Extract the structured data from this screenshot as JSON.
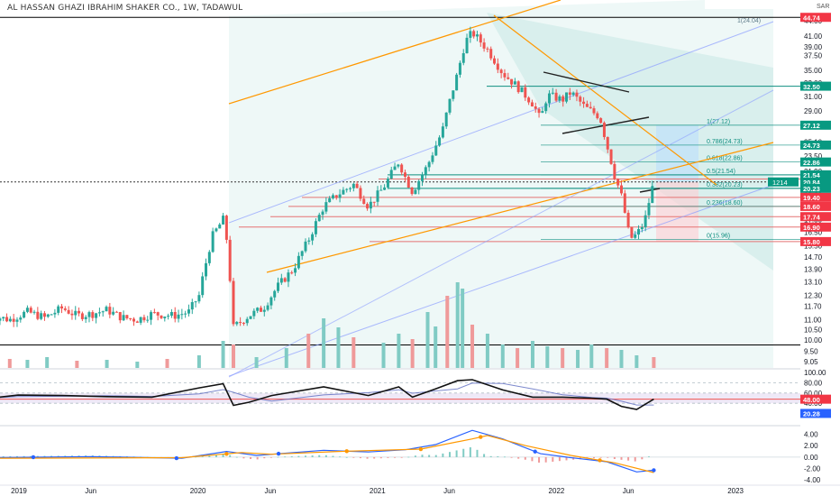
{
  "header": {
    "title": "AL HASSAN GHAZI IBRAHIM SHAKER CO., 1W, TADAWUL",
    "currency": "SAR"
  },
  "colors": {
    "up": "#26a69a",
    "down": "#ef5350",
    "fib": "#0f8f80",
    "orange": "#ff9800",
    "blue": "#2962ff",
    "black": "#000000",
    "tag_red": "#f23645",
    "tag_green": "#089981",
    "tag_blue": "#2962ff"
  },
  "chart_data": [
    {
      "type": "line",
      "panel": "price",
      "title": "AL HASSAN GHAZI IBRAHIM SHAKER CO., 1W, TADAWUL",
      "x_ticks": [
        "2019",
        "Jun",
        "2020",
        "Jun",
        "2021",
        "Jun",
        "2022",
        "Jun",
        "2023"
      ],
      "y_ticks": [
        9.05,
        9.5,
        10.0,
        10.5,
        11.0,
        11.7,
        12.3,
        13.1,
        13.9,
        14.7,
        15.5,
        16.5,
        17.5,
        18.5,
        19.6,
        20.6,
        21.9,
        23.5,
        25.1,
        27.0,
        29.0,
        31.0,
        33.0,
        35.0,
        37.5,
        39.0,
        41.0,
        44.0
      ],
      "ylim": [
        8.9,
        46.5
      ],
      "scale": "log",
      "series": [
        {
          "values": [
            [
              "2018-11-04",
              11.2
            ],
            [
              "2018-12-15",
              11.0
            ],
            [
              "2019-01-20",
              11.4
            ],
            [
              "2019-02-24",
              11.1
            ],
            [
              "2019-04-01",
              11.6
            ],
            [
              "2019-05-01",
              11.2
            ],
            [
              "2019-06-01",
              11.3
            ],
            [
              "2019-07-01",
              11.5
            ],
            [
              "2019-08-01",
              11.1
            ],
            [
              "2019-09-01",
              11.0
            ],
            [
              "2019-10-01",
              11.3
            ],
            [
              "2019-11-15",
              11.2
            ],
            [
              "2019-12-15",
              11.4
            ],
            [
              "2020-01-05",
              12.3
            ],
            [
              "2020-02-01",
              16.2
            ],
            [
              "2020-02-23",
              17.5
            ],
            [
              "2020-03-01",
              16.0
            ],
            [
              "2020-03-15",
              10.6
            ],
            [
              "2020-04-15",
              11.2
            ],
            [
              "2020-05-15",
              11.6
            ],
            [
              "2020-06-15",
              12.9
            ],
            [
              "2020-07-15",
              13.9
            ],
            [
              "2020-08-15",
              15.9
            ],
            [
              "2020-09-15",
              18.6
            ],
            [
              "2020-10-15",
              19.7
            ],
            [
              "2020-11-15",
              20.6
            ],
            [
              "2020-12-15",
              18.6
            ],
            [
              "2021-01-15",
              20.3
            ],
            [
              "2021-02-15",
              22.9
            ],
            [
              "2021-03-01",
              21.2
            ],
            [
              "2021-03-15",
              19.9
            ],
            [
              "2021-04-15",
              22.5
            ],
            [
              "2021-05-15",
              26.4
            ],
            [
              "2021-06-15",
              34.5
            ],
            [
              "2021-07-01",
              40.0
            ],
            [
              "2021-07-15",
              41.7
            ],
            [
              "2021-08-15",
              38.5
            ],
            [
              "2021-09-15",
              34.5
            ],
            [
              "2021-10-15",
              32.4
            ],
            [
              "2021-11-15",
              30.0
            ],
            [
              "2021-12-01",
              27.8
            ],
            [
              "2021-12-15",
              31.2
            ],
            [
              "2022-01-15",
              30.5
            ],
            [
              "2022-02-01",
              31.6
            ],
            [
              "2022-03-01",
              29.5
            ],
            [
              "2022-04-01",
              28.2
            ],
            [
              "2022-04-15",
              24.8
            ],
            [
              "2022-05-01",
              21.5
            ],
            [
              "2022-05-15",
              19.5
            ],
            [
              "2022-06-01",
              16.0
            ],
            [
              "2022-06-15",
              16.3
            ],
            [
              "2022-07-01",
              17.3
            ],
            [
              "2022-07-20",
              20.84
            ]
          ]
        }
      ],
      "volume": [
        [
          "2018-11-04",
          8
        ],
        [
          "2018-12-15",
          10
        ],
        [
          "2019-01-20",
          9
        ],
        [
          "2019-03-01",
          12
        ],
        [
          "2019-05-01",
          8
        ],
        [
          "2019-07-01",
          9
        ],
        [
          "2019-09-01",
          7
        ],
        [
          "2019-11-01",
          10
        ],
        [
          "2020-01-05",
          14
        ],
        [
          "2020-02-23",
          30
        ],
        [
          "2020-03-15",
          26
        ],
        [
          "2020-05-01",
          12
        ],
        [
          "2020-07-01",
          22
        ],
        [
          "2020-08-15",
          38
        ],
        [
          "2020-09-15",
          55
        ],
        [
          "2020-10-15",
          45
        ],
        [
          "2020-11-15",
          34
        ],
        [
          "2021-01-15",
          28
        ],
        [
          "2021-02-15",
          38
        ],
        [
          "2021-03-15",
          32
        ],
        [
          "2021-04-15",
          62
        ],
        [
          "2021-05-01",
          46
        ],
        [
          "2021-05-25",
          80
        ],
        [
          "2021-06-15",
          95
        ],
        [
          "2021-06-25",
          88
        ],
        [
          "2021-07-15",
          48
        ],
        [
          "2021-08-15",
          38
        ],
        [
          "2021-09-15",
          26
        ],
        [
          "2021-10-15",
          22
        ],
        [
          "2021-11-15",
          30
        ],
        [
          "2021-12-15",
          24
        ],
        [
          "2022-01-15",
          22
        ],
        [
          "2022-02-15",
          20
        ],
        [
          "2022-03-15",
          26
        ],
        [
          "2022-04-15",
          22
        ],
        [
          "2022-05-15",
          20
        ],
        [
          "2022-06-15",
          14
        ],
        [
          "2022-07-20",
          12
        ]
      ]
    },
    {
      "type": "line",
      "panel": "rsi",
      "ylim": [
        0,
        100
      ],
      "y_ticks": [
        "100.00",
        "80.00",
        "60.00",
        "40.00"
      ],
      "series": [
        {
          "values": [
            [
              "2018-11-04",
              50
            ],
            [
              "2019-01-01",
              56
            ],
            [
              "2019-04-01",
              55
            ],
            [
              "2019-07-01",
              53
            ],
            [
              "2019-10-01",
              52
            ],
            [
              "2020-01-05",
              70
            ],
            [
              "2020-02-23",
              78
            ],
            [
              "2020-03-15",
              36
            ],
            [
              "2020-04-15",
              42
            ],
            [
              "2020-06-01",
              55
            ],
            [
              "2020-09-15",
              72
            ],
            [
              "2020-12-15",
              55
            ],
            [
              "2021-02-15",
              72
            ],
            [
              "2021-03-15",
              52
            ],
            [
              "2021-05-01",
              68
            ],
            [
              "2021-06-15",
              84
            ],
            [
              "2021-07-15",
              86
            ],
            [
              "2021-09-15",
              66
            ],
            [
              "2021-11-15",
              52
            ],
            [
              "2022-01-15",
              52
            ],
            [
              "2022-03-15",
              50
            ],
            [
              "2022-04-15",
              48
            ],
            [
              "2022-05-15",
              34
            ],
            [
              "2022-06-15",
              28
            ],
            [
              "2022-07-20",
              48
            ]
          ]
        }
      ],
      "tags": [
        [
          "48.00",
          48
        ],
        [
          "20.28",
          20.28
        ]
      ]
    },
    {
      "type": "line",
      "panel": "macd",
      "ylim": [
        -4.6,
        5.2
      ],
      "y_ticks": [
        "4.00",
        "2.00",
        "0.00",
        "-2.00",
        "-4.00"
      ],
      "series": [
        {
          "values": [
            [
              "2018-11-04",
              -0.1
            ],
            [
              "2019-06-01",
              0.1
            ],
            [
              "2019-12-01",
              -0.2
            ],
            [
              "2020-03-01",
              1.0
            ],
            [
              "2020-05-01",
              0.3
            ],
            [
              "2020-09-15",
              1.2
            ],
            [
              "2020-12-15",
              0.9
            ],
            [
              "2021-03-01",
              1.3
            ],
            [
              "2021-05-01",
              2.2
            ],
            [
              "2021-07-15",
              4.7
            ],
            [
              "2021-09-15",
              3.2
            ],
            [
              "2021-12-01",
              0.6
            ],
            [
              "2022-02-01",
              -0.1
            ],
            [
              "2022-04-15",
              -0.8
            ],
            [
              "2022-06-15",
              -2.6
            ],
            [
              "2022-07-20",
              -2.3
            ]
          ]
        },
        {
          "values": [
            [
              "2018-11-04",
              -0.2
            ],
            [
              "2019-12-01",
              -0.1
            ],
            [
              "2020-04-01",
              0.8
            ],
            [
              "2020-06-01",
              0.5
            ],
            [
              "2020-10-15",
              1.0
            ],
            [
              "2021-04-01",
              1.4
            ],
            [
              "2021-07-15",
              3.2
            ],
            [
              "2021-08-15",
              3.8
            ],
            [
              "2021-11-01",
              2.0
            ],
            [
              "2022-02-01",
              0.3
            ],
            [
              "2022-05-01",
              -1.0
            ],
            [
              "2022-07-20",
              -2.7
            ]
          ]
        }
      ]
    }
  ],
  "price_tags": [
    {
      "label": "44.74",
      "value": 44.74,
      "color": "#f23645"
    },
    {
      "label": "32.50",
      "value": 32.5,
      "color": "#089981"
    },
    {
      "label": "27.12",
      "value": 27.12,
      "color": "#089981"
    },
    {
      "label": "24.73",
      "value": 24.73,
      "color": "#089981"
    },
    {
      "label": "22.86",
      "value": 22.86,
      "color": "#089981"
    },
    {
      "label": "21.12",
      "value": 21.12,
      "color": "#f23645"
    },
    {
      "label": "21.54",
      "value": 21.54,
      "color": "#089981"
    },
    {
      "label": "20.84",
      "value": 20.84,
      "color": "#089981"
    },
    {
      "label": "20.23",
      "value": 20.23,
      "color": "#089981"
    },
    {
      "label": "19.40",
      "value": 19.4,
      "color": "#f23645"
    },
    {
      "label": "18.60",
      "value": 18.6,
      "color": "#f23645"
    },
    {
      "label": "17.74",
      "value": 17.74,
      "color": "#f23645"
    },
    {
      "label": "16.90",
      "value": 16.9,
      "color": "#f23645"
    },
    {
      "label": "15.80",
      "value": 15.8,
      "color": "#f23645"
    }
  ],
  "countdown_tag": "1214",
  "fib_levels": [
    {
      "label": "1(27.12)",
      "value": 27.12
    },
    {
      "label": "0.786(24.73)",
      "value": 24.73
    },
    {
      "label": "0.618(22.86)",
      "value": 22.86
    },
    {
      "label": "0.5(21.54)",
      "value": 21.54
    },
    {
      "label": "0.382(20.23)",
      "value": 20.23
    },
    {
      "label": "0.236(18.60)",
      "value": 18.6
    },
    {
      "label": "0(15.96)",
      "value": 15.96
    }
  ],
  "top_fib_label": "1(24.04)"
}
